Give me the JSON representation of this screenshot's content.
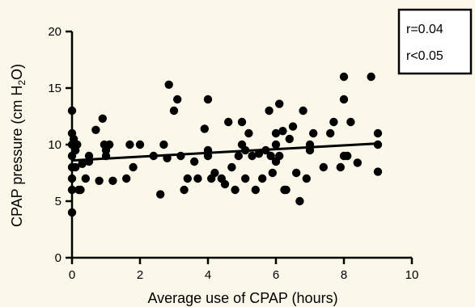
{
  "chart_data": {
    "type": "scatter",
    "xlabel": "Average use of CPAP (hours)",
    "ylabel_parts": [
      "CPAP pressure (cm H",
      "2",
      "O)"
    ],
    "xlim": [
      0,
      10
    ],
    "ylim": [
      0,
      20
    ],
    "x_ticks": [
      0,
      2,
      4,
      6,
      8,
      10
    ],
    "y_ticks": [
      0,
      5,
      10,
      15,
      20
    ],
    "grid": false,
    "annotations": [
      "r=0.04",
      "r<0.05"
    ],
    "trend_line": {
      "x": [
        0,
        9
      ],
      "y": [
        8.6,
        10.1
      ]
    },
    "points": [
      [
        0,
        4
      ],
      [
        0,
        6
      ],
      [
        0,
        7
      ],
      [
        0,
        8
      ],
      [
        0,
        9
      ],
      [
        0,
        10
      ],
      [
        0,
        11
      ],
      [
        0,
        13
      ],
      [
        0.05,
        10.5
      ],
      [
        0.1,
        9.5
      ],
      [
        0.1,
        8
      ],
      [
        0.15,
        10
      ],
      [
        0.2,
        6
      ],
      [
        0.25,
        6
      ],
      [
        0.3,
        8.3
      ],
      [
        0.4,
        7
      ],
      [
        0.5,
        8.5
      ],
      [
        0.5,
        9
      ],
      [
        0.7,
        11.3
      ],
      [
        0.8,
        6.8
      ],
      [
        0.9,
        12.3
      ],
      [
        0.95,
        10
      ],
      [
        1,
        9
      ],
      [
        1,
        9.5
      ],
      [
        1.1,
        10
      ],
      [
        1.2,
        6.8
      ],
      [
        1.6,
        7
      ],
      [
        1.7,
        10
      ],
      [
        1.8,
        8
      ],
      [
        2,
        10
      ],
      [
        2.4,
        9
      ],
      [
        2.6,
        5.6
      ],
      [
        2.7,
        10
      ],
      [
        2.8,
        8.8
      ],
      [
        2.85,
        15.3
      ],
      [
        3,
        13
      ],
      [
        3.1,
        14
      ],
      [
        3.2,
        9
      ],
      [
        3.3,
        6
      ],
      [
        3.4,
        7
      ],
      [
        3.6,
        8.5
      ],
      [
        3.7,
        7
      ],
      [
        3.9,
        11.4
      ],
      [
        4,
        14
      ],
      [
        4,
        9
      ],
      [
        4,
        9.5
      ],
      [
        4.1,
        7
      ],
      [
        4.2,
        7.5
      ],
      [
        4.4,
        7
      ],
      [
        4.5,
        6.5
      ],
      [
        4.6,
        12
      ],
      [
        4.7,
        8
      ],
      [
        4.8,
        6
      ],
      [
        4.9,
        9
      ],
      [
        5,
        12
      ],
      [
        5,
        10
      ],
      [
        5.1,
        9.5
      ],
      [
        5.1,
        7
      ],
      [
        5.2,
        11
      ],
      [
        5.3,
        9
      ],
      [
        5.4,
        6
      ],
      [
        5.5,
        9.2
      ],
      [
        5.6,
        7
      ],
      [
        5.7,
        9.5
      ],
      [
        5.8,
        13
      ],
      [
        5.85,
        9
      ],
      [
        5.9,
        7.5
      ],
      [
        6,
        11
      ],
      [
        6,
        10
      ],
      [
        6,
        8.5
      ],
      [
        6.1,
        13.6
      ],
      [
        6.1,
        9
      ],
      [
        6.2,
        11.2
      ],
      [
        6.25,
        6
      ],
      [
        6.3,
        6
      ],
      [
        6.4,
        10.5
      ],
      [
        6.5,
        11.6
      ],
      [
        6.6,
        7.5
      ],
      [
        6.7,
        5
      ],
      [
        6.8,
        13
      ],
      [
        6.9,
        7
      ],
      [
        7,
        9.5
      ],
      [
        7,
        10
      ],
      [
        7.1,
        11
      ],
      [
        7.4,
        8
      ],
      [
        7.6,
        11
      ],
      [
        7.7,
        12
      ],
      [
        7.9,
        8
      ],
      [
        8,
        16
      ],
      [
        8,
        14
      ],
      [
        8,
        9
      ],
      [
        8.1,
        9
      ],
      [
        8.2,
        12
      ],
      [
        8.4,
        8.4
      ],
      [
        8.8,
        16
      ],
      [
        9,
        11
      ],
      [
        9,
        10
      ],
      [
        9,
        7.6
      ]
    ]
  }
}
